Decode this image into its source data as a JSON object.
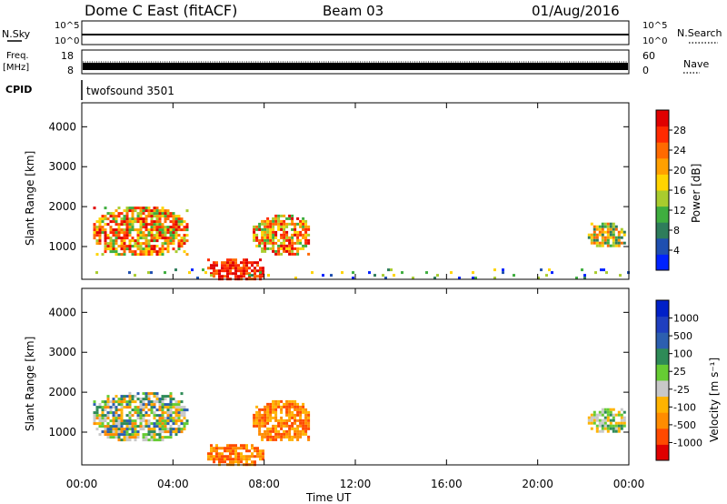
{
  "header": {
    "title": "Dome C East (fitACF)",
    "beam": "Beam 03",
    "date": "01/Aug/2016"
  },
  "strips": {
    "nsky": {
      "label": "N.Sky",
      "ticks": [
        "10^5",
        "10^0"
      ]
    },
    "nsearch": {
      "label": "N.Search",
      "ticks": [
        "10^5",
        "10^0"
      ]
    },
    "freq": {
      "label": "Freq.",
      "unit": "[MHz]",
      "ticks": [
        "18",
        "8"
      ]
    },
    "nave": {
      "label": "Nave",
      "ticks": [
        "60",
        "0"
      ]
    },
    "cpid": {
      "label": "CPID",
      "value": "twofsound 3501"
    }
  },
  "colors": {
    "power": [
      "#0022ff",
      "#1f4fb0",
      "#2e7d5b",
      "#3fae3f",
      "#a9cc2e",
      "#ffd400",
      "#ffa000",
      "#ff6a00",
      "#ff2a00",
      "#e00000"
    ],
    "velocity": [
      "#e00000",
      "#ff4a00",
      "#ff8c00",
      "#ffb300",
      "#c8c8c8",
      "#66cc33",
      "#2e8b57",
      "#2c5fb0",
      "#1f3fbf",
      "#0020c8"
    ]
  },
  "chart_data": [
    {
      "type": "heatmap",
      "panel": "power",
      "ylabel": "Slant Range [km]",
      "xlabel": "",
      "ylim": [
        180,
        4600
      ],
      "xlim": [
        0,
        24
      ],
      "y_ticks": [
        "1000",
        "2000",
        "3000",
        "4000"
      ],
      "x_ticks": [
        "00:00",
        "04:00",
        "08:00",
        "12:00",
        "16:00",
        "20:00",
        "00:00"
      ],
      "colorbar": {
        "label": "Power [dB]",
        "ticks": [
          "4",
          "8",
          "12",
          "16",
          "20",
          "24",
          "28"
        ],
        "range": [
          0,
          32
        ]
      },
      "regions": [
        {
          "t": [
            0.5,
            4.6
          ],
          "r": [
            800,
            2000
          ],
          "level": "high"
        },
        {
          "t": [
            5.5,
            8.0
          ],
          "r": [
            180,
            700
          ],
          "level": "very_high"
        },
        {
          "t": [
            7.5,
            10.0
          ],
          "r": [
            800,
            1800
          ],
          "level": "high"
        },
        {
          "t": [
            22.2,
            23.8
          ],
          "r": [
            1000,
            1600
          ],
          "level": "mid"
        },
        {
          "t": [
            0,
            24
          ],
          "r": [
            180,
            450
          ],
          "level": "low_scatter"
        }
      ]
    },
    {
      "type": "heatmap",
      "panel": "velocity",
      "ylabel": "Slant Range [km]",
      "xlabel": "Time UT",
      "ylim": [
        180,
        4600
      ],
      "xlim": [
        0,
        24
      ],
      "y_ticks": [
        "1000",
        "2000",
        "3000",
        "4000"
      ],
      "x_ticks": [
        "00:00",
        "04:00",
        "08:00",
        "12:00",
        "16:00",
        "20:00",
        "00:00"
      ],
      "colorbar": {
        "label": "Velocity [m s⁻¹]",
        "ticks": [
          "-1000",
          "-500",
          "-100",
          "-25",
          "25",
          "100",
          "500",
          "1000"
        ]
      },
      "regions": [
        {
          "t": [
            0.5,
            4.6
          ],
          "r": [
            800,
            2000
          ],
          "velocity": "mixed_-100_to_100"
        },
        {
          "t": [
            5.5,
            8.0
          ],
          "r": [
            180,
            700
          ],
          "velocity": "-100"
        },
        {
          "t": [
            7.5,
            10.0
          ],
          "r": [
            800,
            1800
          ],
          "velocity": "-100"
        },
        {
          "t": [
            22.2,
            23.8
          ],
          "r": [
            1000,
            1600
          ],
          "velocity": "mixed_-25_to_100"
        }
      ]
    }
  ]
}
